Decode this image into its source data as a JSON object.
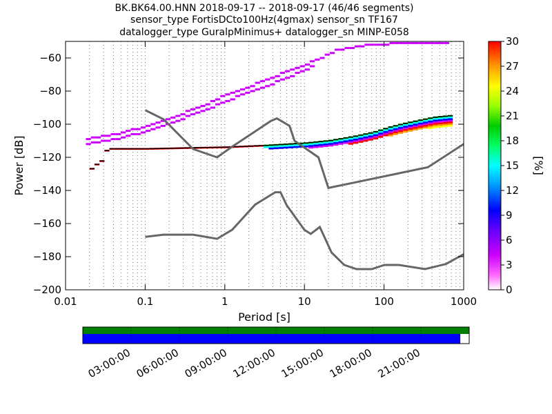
{
  "chart_data": {
    "type": "heatmap",
    "title_lines": [
      "BK.BK64.00.HNN   2018-09-17 -- 2018-09-17  (46/46 segments)",
      "sensor_type FortisDCto100Hz(4gmax) sensor_sn TF167",
      "datalogger_type GuralpMinimus+ datalogger_sn MINP-E058"
    ],
    "xlabel": "Period [s]",
    "ylabel": "Power [dB]",
    "x_scale": "log",
    "xlim": [
      0.01,
      1000
    ],
    "ylim": [
      -200,
      -50
    ],
    "x_ticks": [
      {
        "value": 0.01,
        "label": "0.01"
      },
      {
        "value": 0.1,
        "label": "0.1"
      },
      {
        "value": 1,
        "label": "1"
      },
      {
        "value": 10,
        "label": "10"
      },
      {
        "value": 100,
        "label": "100"
      },
      {
        "value": 1000,
        "label": "1000"
      }
    ],
    "y_ticks": [
      {
        "value": -60,
        "label": "−60"
      },
      {
        "value": -80,
        "label": "−80"
      },
      {
        "value": -100,
        "label": "−100"
      },
      {
        "value": -120,
        "label": "−120"
      },
      {
        "value": -140,
        "label": "−140"
      },
      {
        "value": -160,
        "label": "−160"
      },
      {
        "value": -180,
        "label": "−180"
      },
      {
        "value": -200,
        "label": "−200"
      }
    ],
    "grid": "dotted vertical at periods",
    "colorbar": {
      "label": "[%]",
      "range": [
        0,
        30
      ],
      "ticks": [
        "0",
        "3",
        "6",
        "9",
        "12",
        "15",
        "18",
        "21",
        "24",
        "27",
        "30"
      ]
    },
    "noise_models": {
      "high": [
        {
          "period": 0.1,
          "db": -91.5
        },
        {
          "period": 0.17,
          "db": -97
        },
        {
          "period": 0.4,
          "db": -115
        },
        {
          "period": 0.8,
          "db": -120
        },
        {
          "period": 1.2,
          "db": -114
        },
        {
          "period": 3.8,
          "db": -98
        },
        {
          "period": 4.5,
          "db": -96.5
        },
        {
          "period": 6.5,
          "db": -101
        },
        {
          "period": 7.5,
          "db": -110
        },
        {
          "period": 15,
          "db": -120
        },
        {
          "period": 20,
          "db": -138.5
        },
        {
          "period": 354.8,
          "db": -126
        },
        {
          "period": 1000,
          "db": -112
        }
      ],
      "low": [
        {
          "period": 0.1,
          "db": -168
        },
        {
          "period": 0.17,
          "db": -166.7
        },
        {
          "period": 0.4,
          "db": -166.7
        },
        {
          "period": 0.8,
          "db": -169.2
        },
        {
          "period": 1.24,
          "db": -163.7
        },
        {
          "period": 2.4,
          "db": -148.6
        },
        {
          "period": 4.3,
          "db": -141.1
        },
        {
          "period": 5,
          "db": -141.1
        },
        {
          "period": 6,
          "db": -149
        },
        {
          "period": 10,
          "db": -163.8
        },
        {
          "period": 12,
          "db": -166.2
        },
        {
          "period": 15.6,
          "db": -162.1
        },
        {
          "period": 21.9,
          "db": -177.5
        },
        {
          "period": 31.6,
          "db": -185
        },
        {
          "period": 45,
          "db": -187.5
        },
        {
          "period": 70,
          "db": -187.5
        },
        {
          "period": 101,
          "db": -185
        },
        {
          "period": 154,
          "db": -185
        },
        {
          "period": 328,
          "db": -187.5
        },
        {
          "period": 600,
          "db": -184.4
        },
        {
          "period": 1000,
          "db": -178.5
        }
      ]
    },
    "psd_main": [
      {
        "period": 0.02,
        "db": -127
      },
      {
        "period": 0.022,
        "db": -125
      },
      {
        "period": 0.025,
        "db": -123.5
      },
      {
        "period": 0.028,
        "db": -121.5
      },
      {
        "period": 0.03,
        "db": -116.5
      },
      {
        "period": 0.033,
        "db": -115
      },
      {
        "period": 0.05,
        "db": -115
      },
      {
        "period": 0.1,
        "db": -115
      },
      {
        "period": 0.3,
        "db": -114.5
      },
      {
        "period": 1,
        "db": -114
      },
      {
        "period": 3,
        "db": -113
      },
      {
        "period": 10,
        "db": -111.5
      },
      {
        "period": 20,
        "db": -110
      },
      {
        "period": 40,
        "db": -107.5
      },
      {
        "period": 70,
        "db": -105
      },
      {
        "period": 110,
        "db": -102
      },
      {
        "period": 160,
        "db": -100
      },
      {
        "period": 250,
        "db": -98
      },
      {
        "period": 400,
        "db": -96
      },
      {
        "period": 650,
        "db": -95
      }
    ],
    "psd_secondary": [
      {
        "period": 0.018,
        "db": -109
      },
      {
        "period": 0.05,
        "db": -105
      },
      {
        "period": 0.1,
        "db": -101
      },
      {
        "period": 0.2,
        "db": -96
      },
      {
        "period": 0.5,
        "db": -89
      },
      {
        "period": 1,
        "db": -82
      },
      {
        "period": 2,
        "db": -77
      },
      {
        "period": 4,
        "db": -71
      },
      {
        "period": 8,
        "db": -66
      },
      {
        "period": 15,
        "db": -60
      },
      {
        "period": 25,
        "db": -55
      },
      {
        "period": 50,
        "db": -52.5
      },
      {
        "period": 150,
        "db": -51
      },
      {
        "period": 650,
        "db": -50.5
      }
    ],
    "psd_secondary_low": [
      {
        "period": 0.018,
        "db": -112
      },
      {
        "period": 0.05,
        "db": -108
      },
      {
        "period": 0.1,
        "db": -104
      },
      {
        "period": 0.2,
        "db": -99
      },
      {
        "period": 0.5,
        "db": -92
      },
      {
        "period": 1,
        "db": -86
      },
      {
        "period": 2,
        "db": -80
      },
      {
        "period": 4,
        "db": -75
      },
      {
        "period": 8,
        "db": -69
      },
      {
        "period": 12,
        "db": -65
      }
    ],
    "time_axis": {
      "tick_labels": [
        "03:00:00",
        "06:00:00",
        "09:00:00",
        "12:00:00",
        "15:00:00",
        "18:00:00",
        "21:00:00"
      ],
      "coverage_fraction": 0.977,
      "coverage_color": "#0000ff",
      "availability_color": "#008000"
    }
  }
}
